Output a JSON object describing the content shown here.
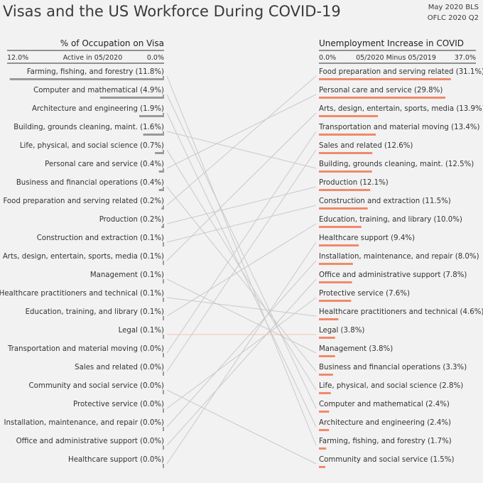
{
  "header": {
    "title": "Visas and the US Workforce During COVID-19",
    "source_line1": "May 2020 BLS",
    "source_line2": "OFLC 2020 Q2"
  },
  "colors": {
    "visa_bar": "#9a9a9a",
    "unemp_bar": "#f08a6a",
    "connector": "#c9c9c9",
    "legal_connector": "#f2c4b4",
    "rule": "#333333"
  },
  "chart_data": {
    "type": "bar",
    "left_panel": {
      "title": "% of Occupation on Visa",
      "axis_left": "12.0%",
      "axis_center": "Active in 05/2020",
      "axis_right": "0.0%",
      "xlim": [
        0,
        12.0
      ],
      "direction": "right-to-left",
      "items": [
        {
          "label": "Farming, fishing, and forestry (11.8%)",
          "key": "Farming, fishing, and forestry",
          "value": 11.8
        },
        {
          "label": "Computer and mathematical (4.9%)",
          "key": "Computer and mathematical",
          "value": 4.9
        },
        {
          "label": "Architecture and engineering (1.9%)",
          "key": "Architecture and engineering",
          "value": 1.9
        },
        {
          "label": "Building, grounds cleaning, maint. (1.6%)",
          "key": "Building, grounds cleaning, maint.",
          "value": 1.6
        },
        {
          "label": "Life, physical, and social science (0.7%)",
          "key": "Life, physical, and social science",
          "value": 0.7
        },
        {
          "label": "Personal care and service (0.4%)",
          "key": "Personal care and service",
          "value": 0.4
        },
        {
          "label": "Business and financial operations (0.4%)",
          "key": "Business and financial operations",
          "value": 0.4
        },
        {
          "label": "Food preparation and serving related (0.2%)",
          "key": "Food preparation and serving related",
          "value": 0.2
        },
        {
          "label": "Production (0.2%)",
          "key": "Production",
          "value": 0.2
        },
        {
          "label": "Construction and extraction (0.1%)",
          "key": "Construction and extraction",
          "value": 0.1
        },
        {
          "label": "Arts, design, entertain, sports, media (0.1%)",
          "key": "Arts, design, entertain, sports, media",
          "value": 0.1
        },
        {
          "label": "Management (0.1%)",
          "key": "Management",
          "value": 0.1
        },
        {
          "label": "Healthcare practitioners and technical (0.1%)",
          "key": "Healthcare practitioners and technical",
          "value": 0.1
        },
        {
          "label": "Education, training, and library (0.1%)",
          "key": "Education, training, and library",
          "value": 0.1
        },
        {
          "label": "Legal (0.1%)",
          "key": "Legal",
          "value": 0.1
        },
        {
          "label": "Transportation and material moving (0.0%)",
          "key": "Transportation and material moving",
          "value": 0.0
        },
        {
          "label": "Sales and related (0.0%)",
          "key": "Sales and related",
          "value": 0.0
        },
        {
          "label": "Community and social service (0.0%)",
          "key": "Community and social service",
          "value": 0.0
        },
        {
          "label": "Protective service (0.0%)",
          "key": "Protective service",
          "value": 0.0
        },
        {
          "label": "Installation, maintenance, and repair (0.0%)",
          "key": "Installation, maintenance, and repair",
          "value": 0.0
        },
        {
          "label": "Office and administrative support (0.0%)",
          "key": "Office and administrative support",
          "value": 0.0
        },
        {
          "label": "Healthcare support (0.0%)",
          "key": "Healthcare support",
          "value": 0.0
        }
      ]
    },
    "right_panel": {
      "title": "Unemployment Increase in COVID",
      "axis_left": "0.0%",
      "axis_center": "05/2020 Minus 05/2019",
      "axis_right": "37.0%",
      "xlim": [
        0,
        37.0
      ],
      "direction": "left-to-right",
      "items": [
        {
          "label": "Food preparation and serving related (31.1%)",
          "key": "Food preparation and serving related",
          "value": 31.1
        },
        {
          "label": "Personal care and service (29.8%)",
          "key": "Personal care and service",
          "value": 29.8
        },
        {
          "label": "Arts, design, entertain, sports, media (13.9%)",
          "key": "Arts, design, entertain, sports, media",
          "value": 13.9
        },
        {
          "label": "Transportation and material moving (13.4%)",
          "key": "Transportation and material moving",
          "value": 13.4
        },
        {
          "label": "Sales and related (12.6%)",
          "key": "Sales and related",
          "value": 12.6
        },
        {
          "label": "Building, grounds cleaning, maint. (12.5%)",
          "key": "Building, grounds cleaning, maint.",
          "value": 12.5
        },
        {
          "label": "Production (12.1%)",
          "key": "Production",
          "value": 12.1
        },
        {
          "label": "Construction and extraction (11.5%)",
          "key": "Construction and extraction",
          "value": 11.5
        },
        {
          "label": "Education, training, and library (10.0%)",
          "key": "Education, training, and library",
          "value": 10.0
        },
        {
          "label": "Healthcare support (9.4%)",
          "key": "Healthcare support",
          "value": 9.4
        },
        {
          "label": "Installation, maintenance, and repair (8.0%)",
          "key": "Installation, maintenance, and repair",
          "value": 8.0
        },
        {
          "label": "Office and administrative support (7.8%)",
          "key": "Office and administrative support",
          "value": 7.8
        },
        {
          "label": "Protective service (7.6%)",
          "key": "Protective service",
          "value": 7.6
        },
        {
          "label": "Healthcare practitioners and technical (4.6%)",
          "key": "Healthcare practitioners and technical",
          "value": 4.6
        },
        {
          "label": "Legal (3.8%)",
          "key": "Legal",
          "value": 3.8
        },
        {
          "label": "Management (3.8%)",
          "key": "Management",
          "value": 3.8
        },
        {
          "label": "Business and financial operations (3.3%)",
          "key": "Business and financial operations",
          "value": 3.3
        },
        {
          "label": "Life, physical, and social science (2.8%)",
          "key": "Life, physical, and social science",
          "value": 2.8
        },
        {
          "label": "Computer and mathematical (2.4%)",
          "key": "Computer and mathematical",
          "value": 2.4
        },
        {
          "label": "Architecture and engineering (2.4%)",
          "key": "Architecture and engineering",
          "value": 2.4
        },
        {
          "label": "Farming, fishing, and forestry (1.7%)",
          "key": "Farming, fishing, and forestry",
          "value": 1.7
        },
        {
          "label": "Community and social service (1.5%)",
          "key": "Community and social service",
          "value": 1.5
        }
      ]
    },
    "highlight": "Legal"
  }
}
